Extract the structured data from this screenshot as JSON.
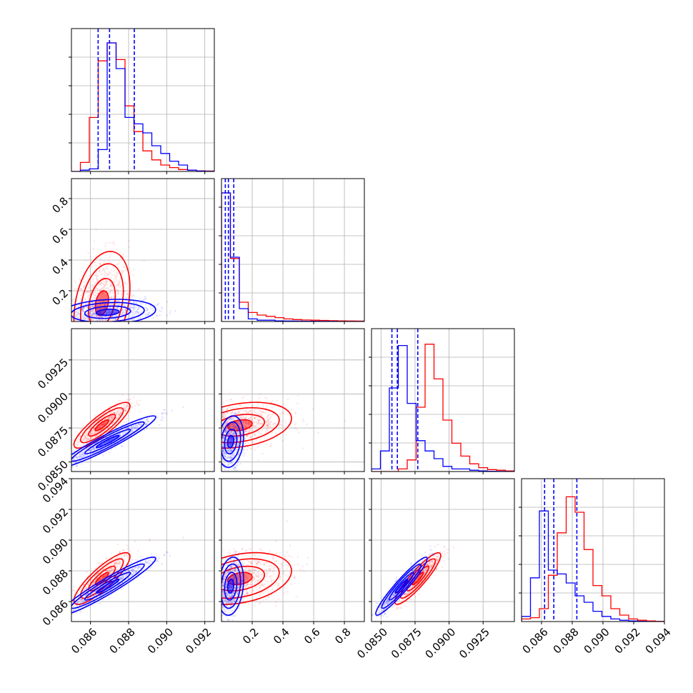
{
  "colors": {
    "series_a": "#ff0000",
    "series_b": "#0000ff",
    "grid": "#b0b0b0"
  },
  "chart_data": {
    "type": "corner",
    "n_params": 4,
    "params": [
      {
        "id": "p0",
        "range": [
          0.085,
          0.0925
        ],
        "ticks": [
          0.086,
          0.088,
          0.09,
          0.092
        ],
        "tick_labels": [
          "0.086",
          "0.088",
          "0.090",
          "0.092"
        ]
      },
      {
        "id": "p1",
        "range": [
          0.0,
          0.93
        ],
        "ticks": [
          0.2,
          0.4,
          0.6,
          0.8
        ],
        "tick_labels": [
          "0.2",
          "0.4",
          "0.6",
          "0.8"
        ],
        "y_ticks": [
          0.2,
          0.4,
          0.6,
          0.8
        ],
        "y_tick_labels": [
          "0.2",
          "0.4",
          "0.6",
          "0.8"
        ]
      },
      {
        "id": "p2",
        "range": [
          0.0843,
          0.0948
        ],
        "ticks": [
          0.085,
          0.0875,
          0.09,
          0.0925
        ],
        "tick_labels": [
          "0.0850",
          "0.0875",
          "0.0900",
          "0.0925"
        ]
      },
      {
        "id": "p3",
        "range": [
          0.0847,
          0.094
        ],
        "ticks": [
          0.086,
          0.088,
          0.09,
          0.092,
          0.094
        ],
        "tick_labels": [
          "0.086",
          "0.088",
          "0.090",
          "0.092",
          "0.094"
        ]
      }
    ],
    "series": [
      {
        "name": "",
        "color": "#ff0000",
        "means": [
          0.0866,
          0.12,
          0.0877,
          0.0875
        ],
        "sds": [
          0.0007,
          0.16,
          0.0008,
          0.0008
        ],
        "corr": [
          [
            1,
            0.3,
            0.85,
            0.85
          ],
          [
            0.3,
            1,
            0.3,
            0.3
          ],
          [
            0.85,
            0.3,
            1,
            0.9
          ],
          [
            0.85,
            0.3,
            0.9,
            1
          ]
        ],
        "hist_1d": [
          [
            0.0,
            0.07,
            0.42,
            0.86,
            1.0,
            0.87,
            0.51,
            0.31,
            0.16,
            0.09,
            0.05,
            0.03,
            0.015,
            0.01,
            0.005,
            0.003
          ],
          [
            1.0,
            0.49,
            0.15,
            0.07,
            0.05,
            0.04,
            0.03,
            0.02,
            0.015,
            0.012,
            0.01,
            0.008,
            0.006,
            0.005,
            0.004,
            0.003
          ],
          [
            0.0,
            0.0,
            0.0,
            0.02,
            0.09,
            0.5,
            0.99,
            0.72,
            0.4,
            0.22,
            0.12,
            0.06,
            0.03,
            0.015,
            0.01,
            0.005
          ],
          [
            0.02,
            0.03,
            0.1,
            0.36,
            0.69,
            0.97,
            0.85,
            0.56,
            0.28,
            0.2,
            0.1,
            0.05,
            0.02,
            0.01,
            0.005,
            0.002
          ]
        ]
      },
      {
        "name": "",
        "color": "#0000ff",
        "means": [
          0.0869,
          0.06,
          0.0865,
          0.087
        ],
        "sds": [
          0.0012,
          0.04,
          0.0009,
          0.0009
        ],
        "corr": [
          [
            1,
            0.2,
            0.95,
            0.95
          ],
          [
            0.2,
            1,
            0.2,
            0.2
          ],
          [
            0.95,
            0.2,
            1,
            0.95
          ],
          [
            0.95,
            0.2,
            0.95,
            1
          ]
        ],
        "quantiles": [
          [
            0.0864,
            0.087,
            0.0883
          ],
          [
            0.025,
            0.045,
            0.08
          ],
          [
            0.0858,
            0.0862,
            0.0877
          ],
          [
            0.0862,
            0.0868,
            0.0883
          ]
        ],
        "hist_1d": [
          [
            0.0,
            0.01,
            0.02,
            0.17,
            1.0,
            0.8,
            0.42,
            0.37,
            0.3,
            0.2,
            0.14,
            0.08,
            0.05,
            0.01,
            0.003,
            0.001
          ],
          [
            1.0,
            0.5,
            0.1,
            0.02,
            0.01,
            0.01,
            0.005,
            0.004,
            0.003,
            0.002,
            0.002,
            0.001,
            0.001,
            0.0,
            0.0,
            0.0
          ],
          [
            0.02,
            0.16,
            0.65,
            0.98,
            0.53,
            0.24,
            0.16,
            0.1,
            0.04,
            0.02,
            0.02,
            0.01,
            0.005,
            0.002,
            0.001,
            0.0
          ],
          [
            0.04,
            0.34,
            0.86,
            0.4,
            0.37,
            0.3,
            0.2,
            0.15,
            0.08,
            0.04,
            0.02,
            0.01,
            0.005,
            0.002,
            0.0,
            0.0
          ]
        ]
      }
    ],
    "grid": true
  }
}
